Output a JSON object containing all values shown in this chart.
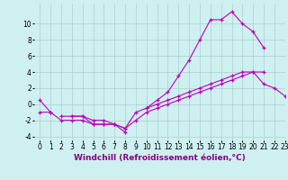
{
  "xlabel": "Windchill (Refroidissement éolien,°C)",
  "background_color": "#cff0f0",
  "grid_color": "#aacece",
  "line_color": "#bb00bb",
  "hours": [
    0,
    1,
    2,
    3,
    4,
    5,
    6,
    7,
    8,
    9,
    10,
    11,
    12,
    13,
    14,
    15,
    16,
    17,
    18,
    19,
    20,
    21,
    22,
    23
  ],
  "line1": [
    0.5,
    -1.0,
    null,
    -1.5,
    -1.5,
    -2.5,
    -2.5,
    -2.5,
    -3.5,
    null,
    -0.5,
    0.5,
    1.5,
    3.5,
    5.5,
    8.0,
    10.5,
    10.5,
    11.5,
    10.0,
    9.0,
    7.0,
    null,
    null
  ],
  "line2": [
    null,
    null,
    -1.5,
    -1.5,
    -1.5,
    -2.0,
    -2.0,
    -2.5,
    -3.0,
    -1.0,
    -0.5,
    0.0,
    0.5,
    1.0,
    1.5,
    2.0,
    2.5,
    3.0,
    3.5,
    4.0,
    4.0,
    2.5,
    2.0,
    1.0
  ],
  "line3": [
    -1.0,
    -1.0,
    -2.0,
    -2.0,
    -2.0,
    -2.5,
    -2.5,
    -2.5,
    -3.0,
    -2.0,
    -1.0,
    -0.5,
    0.0,
    0.5,
    1.0,
    1.5,
    2.0,
    2.5,
    3.0,
    3.5,
    4.0,
    4.0,
    null,
    null
  ],
  "ylim": [
    -4.5,
    12.5
  ],
  "yticks": [
    -4,
    -2,
    0,
    2,
    4,
    6,
    8,
    10
  ],
  "xlim": [
    -0.5,
    23
  ],
  "xticks": [
    0,
    1,
    2,
    3,
    4,
    5,
    6,
    7,
    8,
    9,
    10,
    11,
    12,
    13,
    14,
    15,
    16,
    17,
    18,
    19,
    20,
    21,
    22,
    23
  ],
  "tick_fontsize": 5.5,
  "label_fontsize": 6.5
}
